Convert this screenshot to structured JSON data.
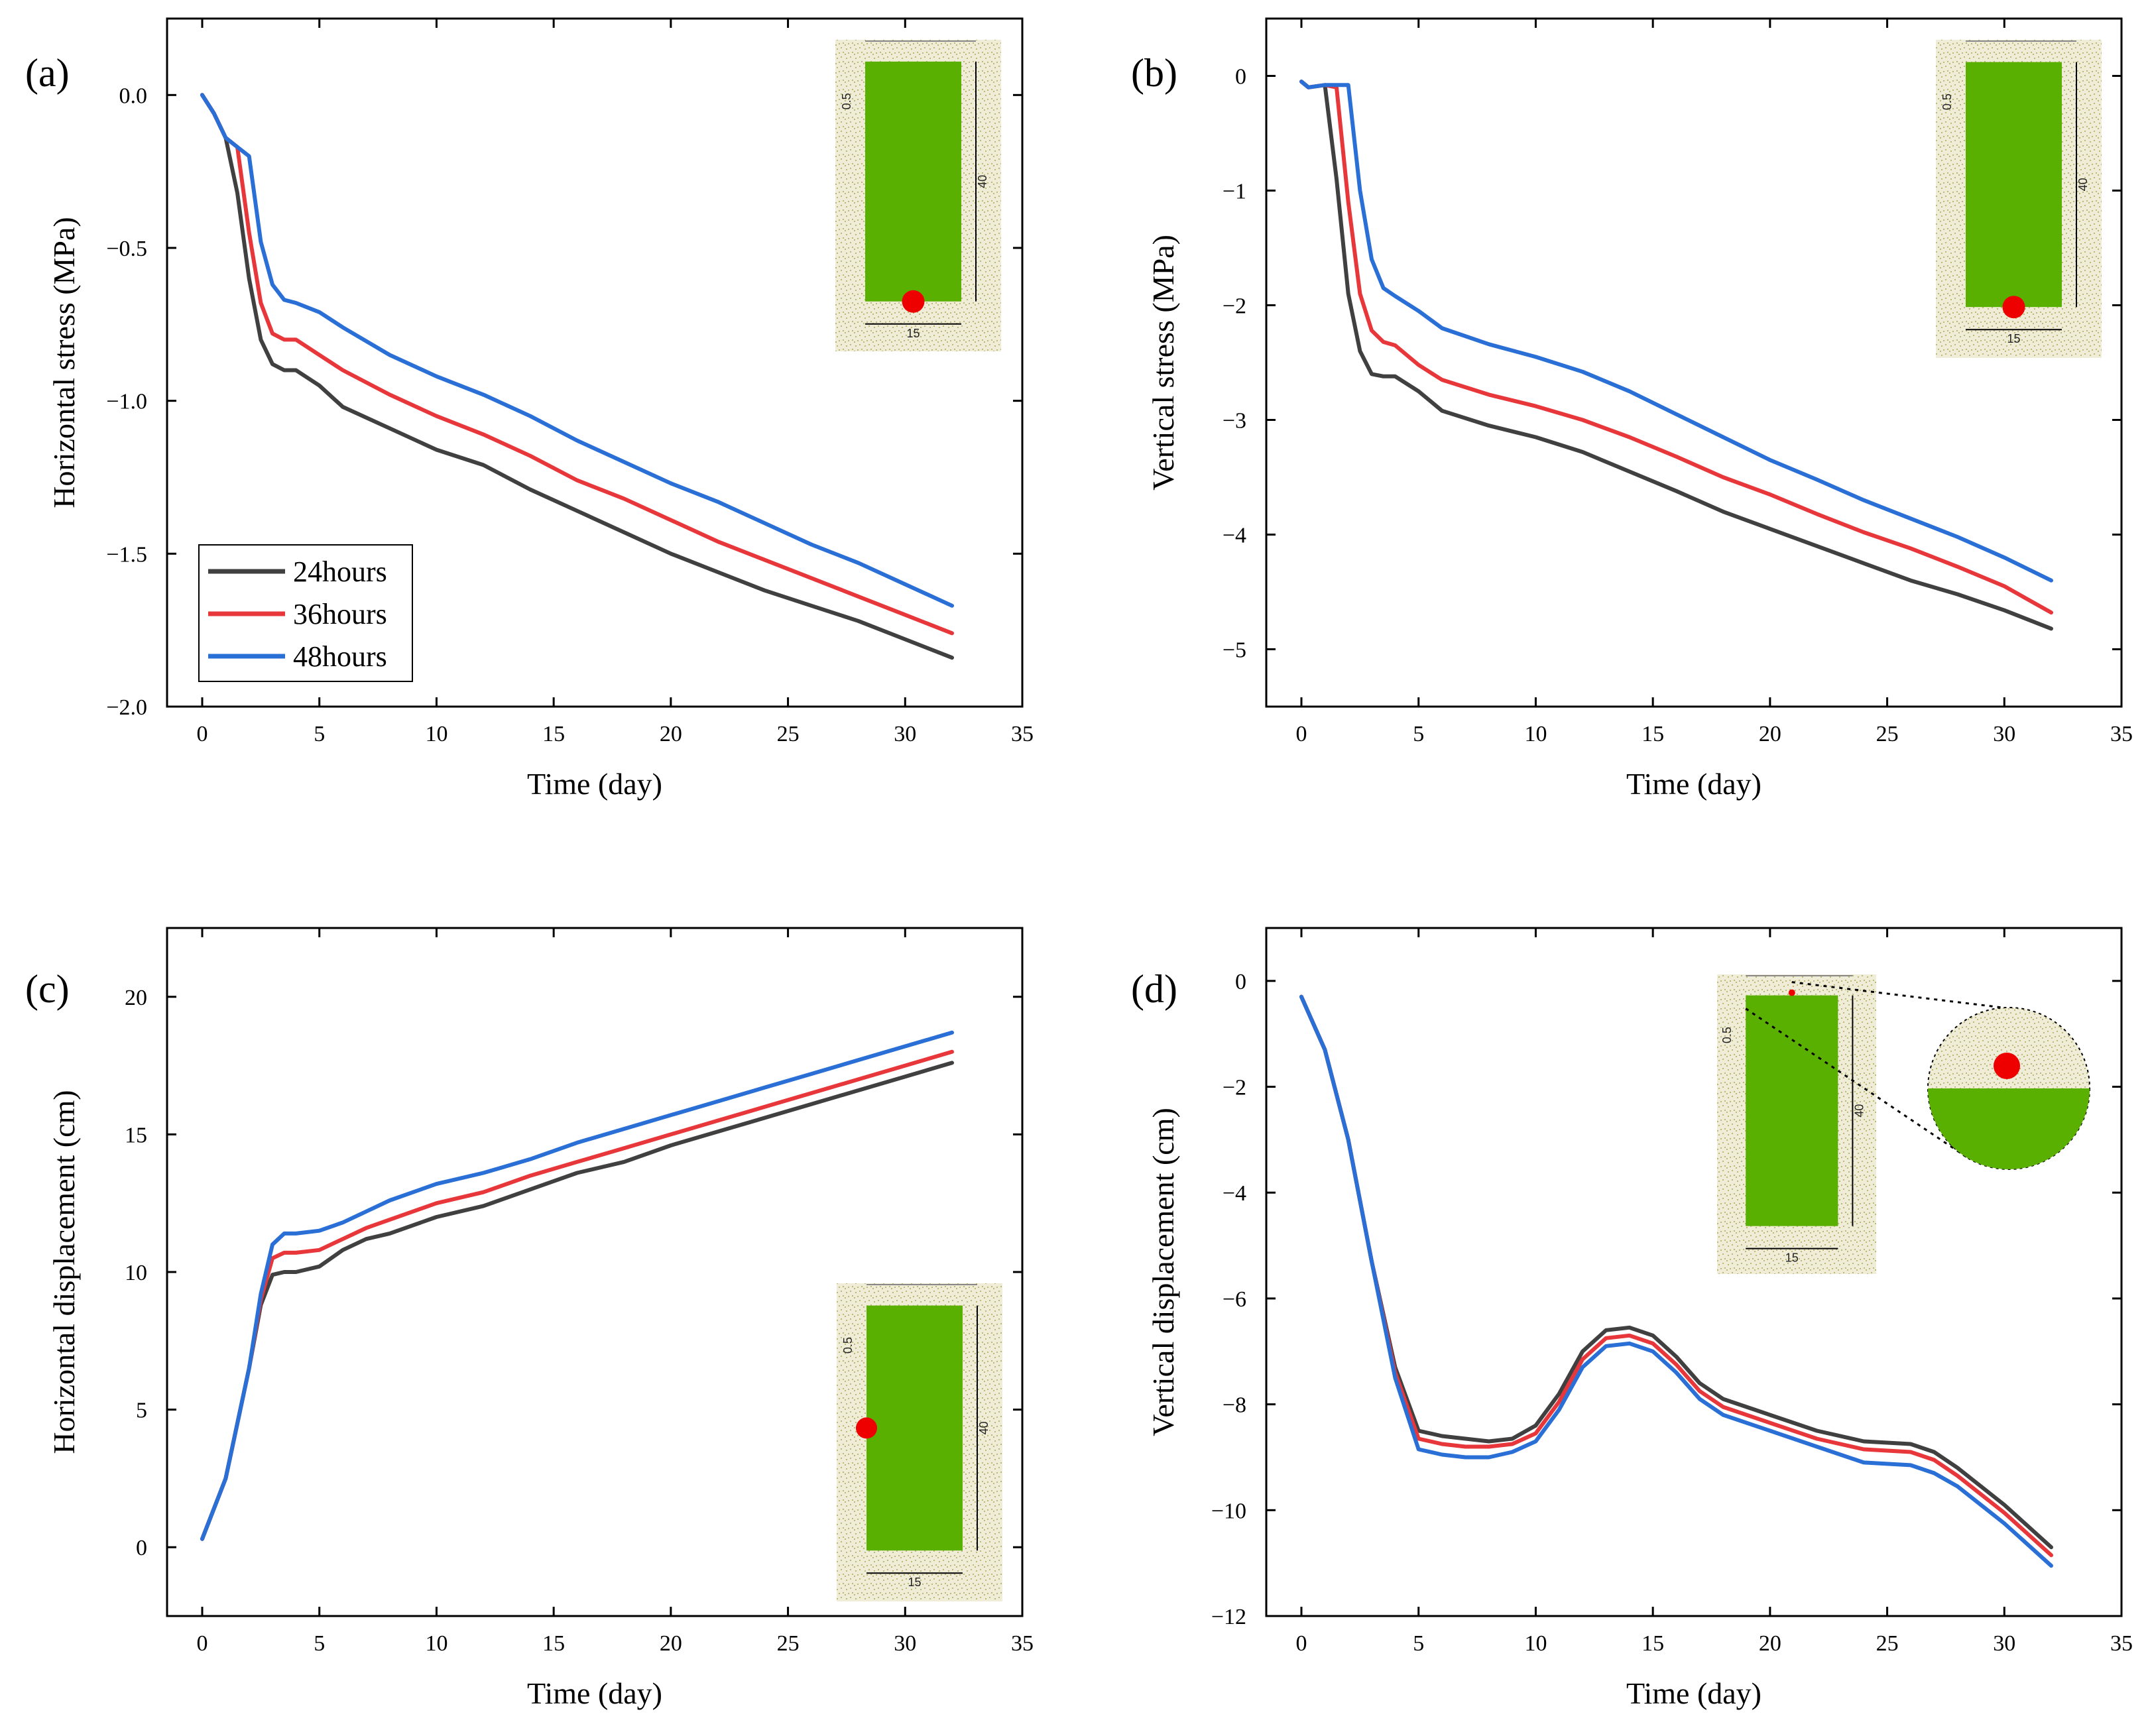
{
  "colors": {
    "24hours": "#404040",
    "36hours": "#e8373a",
    "48hours": "#2a6fd6",
    "inset_fill": "#5ab000",
    "inset_dot": "#ee0000",
    "soil": "#efedd8"
  },
  "legend": {
    "entries": [
      "24hours",
      "36hours",
      "48hours"
    ]
  },
  "inset": {
    "dim_top": "0.5",
    "dim_height": "40",
    "dim_width": "15"
  },
  "chart_data": [
    {
      "id": "a",
      "type": "line",
      "panel_label": "(a)",
      "xlabel": "Time (day)",
      "ylabel": "Horizontal stress (MPa)",
      "xlim": [
        -1.5,
        35
      ],
      "ylim": [
        -2.0,
        0.25
      ],
      "xticks": [
        0,
        5,
        10,
        15,
        20,
        25,
        30,
        35
      ],
      "yticks": [
        -2.0,
        -1.5,
        -1.0,
        -0.5,
        0.0
      ],
      "ytick_labels": [
        "−2.0",
        "−1.5",
        "−1.0",
        "−0.5",
        "0.0"
      ],
      "has_legend": true,
      "inset_marker": "bottom",
      "series": [
        {
          "name": "24hours",
          "x": [
            0,
            0.5,
            1,
            1.5,
            2,
            2.5,
            3,
            3.5,
            4,
            5,
            6,
            8,
            10,
            12,
            14,
            16,
            18,
            20,
            22,
            24,
            26,
            28,
            30,
            32
          ],
          "y": [
            0,
            -0.06,
            -0.14,
            -0.32,
            -0.6,
            -0.8,
            -0.88,
            -0.9,
            -0.9,
            -0.95,
            -1.02,
            -1.09,
            -1.16,
            -1.21,
            -1.29,
            -1.36,
            -1.43,
            -1.5,
            -1.56,
            -1.62,
            -1.67,
            -1.72,
            -1.78,
            -1.84
          ]
        },
        {
          "name": "36hours",
          "x": [
            0,
            0.5,
            1,
            1.5,
            2,
            2.5,
            3,
            3.5,
            4,
            5,
            6,
            8,
            10,
            12,
            14,
            16,
            18,
            20,
            22,
            24,
            26,
            28,
            30,
            32
          ],
          "y": [
            0,
            -0.06,
            -0.14,
            -0.17,
            -0.45,
            -0.68,
            -0.78,
            -0.8,
            -0.8,
            -0.85,
            -0.9,
            -0.98,
            -1.05,
            -1.11,
            -1.18,
            -1.26,
            -1.32,
            -1.39,
            -1.46,
            -1.52,
            -1.58,
            -1.64,
            -1.7,
            -1.76
          ]
        },
        {
          "name": "48hours",
          "x": [
            0,
            0.5,
            1,
            1.5,
            2,
            2.5,
            3,
            3.5,
            4,
            5,
            6,
            8,
            10,
            12,
            14,
            16,
            18,
            20,
            22,
            24,
            26,
            28,
            30,
            32
          ],
          "y": [
            0,
            -0.06,
            -0.14,
            -0.17,
            -0.2,
            -0.48,
            -0.62,
            -0.67,
            -0.68,
            -0.71,
            -0.76,
            -0.85,
            -0.92,
            -0.98,
            -1.05,
            -1.13,
            -1.2,
            -1.27,
            -1.33,
            -1.4,
            -1.47,
            -1.53,
            -1.6,
            -1.67
          ]
        }
      ]
    },
    {
      "id": "b",
      "type": "line",
      "panel_label": "(b)",
      "xlabel": "Time (day)",
      "ylabel": "Vertical stress (MPa)",
      "xlim": [
        -1.5,
        35
      ],
      "ylim": [
        -5.5,
        0.5
      ],
      "xticks": [
        0,
        5,
        10,
        15,
        20,
        25,
        30,
        35
      ],
      "yticks": [
        -5,
        -4,
        -3,
        -2,
        -1,
        0
      ],
      "ytick_labels": [
        "−5",
        "−4",
        "−3",
        "−2",
        "−1",
        "0"
      ],
      "has_legend": false,
      "inset_marker": "bottom",
      "series": [
        {
          "name": "24hours",
          "x": [
            0,
            0.3,
            1,
            1.5,
            2,
            2.5,
            3,
            3.5,
            4,
            5,
            6,
            8,
            10,
            12,
            14,
            16,
            18,
            20,
            22,
            24,
            26,
            28,
            30,
            32
          ],
          "y": [
            -0.05,
            -0.1,
            -0.08,
            -0.9,
            -1.9,
            -2.4,
            -2.6,
            -2.62,
            -2.62,
            -2.75,
            -2.92,
            -3.05,
            -3.15,
            -3.28,
            -3.45,
            -3.62,
            -3.8,
            -3.95,
            -4.1,
            -4.25,
            -4.4,
            -4.52,
            -4.66,
            -4.82
          ]
        },
        {
          "name": "36hours",
          "x": [
            0,
            0.3,
            1,
            1.5,
            2,
            2.5,
            3,
            3.5,
            4,
            5,
            6,
            8,
            10,
            12,
            14,
            16,
            18,
            20,
            22,
            24,
            26,
            28,
            30,
            32
          ],
          "y": [
            -0.05,
            -0.1,
            -0.08,
            -0.1,
            -1.1,
            -1.9,
            -2.22,
            -2.32,
            -2.35,
            -2.52,
            -2.65,
            -2.78,
            -2.88,
            -3.0,
            -3.15,
            -3.32,
            -3.5,
            -3.65,
            -3.82,
            -3.98,
            -4.12,
            -4.28,
            -4.45,
            -4.68
          ]
        },
        {
          "name": "48hours",
          "x": [
            0,
            0.3,
            1,
            1.5,
            2,
            2.5,
            3,
            3.5,
            4,
            5,
            6,
            8,
            10,
            12,
            14,
            16,
            18,
            20,
            22,
            24,
            26,
            28,
            30,
            32
          ],
          "y": [
            -0.05,
            -0.1,
            -0.08,
            -0.08,
            -0.08,
            -1.0,
            -1.6,
            -1.85,
            -1.92,
            -2.05,
            -2.2,
            -2.34,
            -2.45,
            -2.58,
            -2.75,
            -2.95,
            -3.15,
            -3.35,
            -3.52,
            -3.7,
            -3.86,
            -4.02,
            -4.2,
            -4.4
          ]
        }
      ]
    },
    {
      "id": "c",
      "type": "line",
      "panel_label": "(c)",
      "xlabel": "Time (day)",
      "ylabel": "Horizontal displacement (cm)",
      "xlim": [
        -1.5,
        35
      ],
      "ylim": [
        -2.5,
        22.5
      ],
      "xticks": [
        0,
        5,
        10,
        15,
        20,
        25,
        30,
        35
      ],
      "yticks": [
        0,
        5,
        10,
        15,
        20
      ],
      "ytick_labels": [
        "0",
        "5",
        "10",
        "15",
        "20"
      ],
      "has_legend": false,
      "inset_marker": "left",
      "series": [
        {
          "name": "24hours",
          "x": [
            0,
            1,
            2,
            2.5,
            3,
            3.5,
            4,
            5,
            6,
            7,
            8,
            10,
            12,
            14,
            16,
            18,
            20,
            22,
            24,
            26,
            28,
            30,
            32
          ],
          "y": [
            0.3,
            2.5,
            6.5,
            8.8,
            9.9,
            10.0,
            10.0,
            10.2,
            10.8,
            11.2,
            11.4,
            12.0,
            12.4,
            13.0,
            13.6,
            14.0,
            14.6,
            15.1,
            15.6,
            16.1,
            16.6,
            17.1,
            17.6
          ]
        },
        {
          "name": "36hours",
          "x": [
            0,
            1,
            2,
            2.5,
            3,
            3.5,
            4,
            5,
            6,
            7,
            8,
            10,
            12,
            14,
            16,
            18,
            20,
            22,
            24,
            26,
            28,
            30,
            32
          ],
          "y": [
            0.3,
            2.5,
            6.5,
            9.0,
            10.5,
            10.7,
            10.7,
            10.8,
            11.2,
            11.6,
            11.9,
            12.5,
            12.9,
            13.5,
            14.0,
            14.5,
            15.0,
            15.5,
            16.0,
            16.5,
            17.0,
            17.5,
            18.0
          ]
        },
        {
          "name": "48hours",
          "x": [
            0,
            1,
            2,
            2.5,
            3,
            3.5,
            4,
            5,
            6,
            7,
            8,
            10,
            12,
            14,
            16,
            18,
            20,
            22,
            24,
            26,
            28,
            30,
            32
          ],
          "y": [
            0.3,
            2.5,
            6.5,
            9.2,
            11.0,
            11.4,
            11.4,
            11.5,
            11.8,
            12.2,
            12.6,
            13.2,
            13.6,
            14.1,
            14.7,
            15.2,
            15.7,
            16.2,
            16.7,
            17.2,
            17.7,
            18.2,
            18.7
          ]
        }
      ]
    },
    {
      "id": "d",
      "type": "line",
      "panel_label": "(d)",
      "xlabel": "Time (day)",
      "ylabel": "Vertical displacement (cm)",
      "xlim": [
        -1.5,
        35
      ],
      "ylim": [
        -12,
        1
      ],
      "xticks": [
        0,
        5,
        10,
        15,
        20,
        25,
        30,
        35
      ],
      "yticks": [
        -12,
        -10,
        -8,
        -6,
        -4,
        -2,
        0
      ],
      "ytick_labels": [
        "−12",
        "−10",
        "−8",
        "−6",
        "−4",
        "−2",
        "0"
      ],
      "has_legend": false,
      "inset_marker": "zoom",
      "series": [
        {
          "name": "24hours",
          "x": [
            0,
            1,
            2,
            3,
            4,
            5,
            6,
            7,
            8,
            9,
            10,
            11,
            12,
            13,
            14,
            15,
            16,
            17,
            18,
            20,
            22,
            24,
            26,
            27,
            28,
            30,
            32
          ],
          "y": [
            -0.3,
            -1.3,
            -3.0,
            -5.3,
            -7.3,
            -8.5,
            -8.6,
            -8.65,
            -8.7,
            -8.65,
            -8.4,
            -7.8,
            -7.0,
            -6.6,
            -6.55,
            -6.7,
            -7.1,
            -7.6,
            -7.9,
            -8.2,
            -8.5,
            -8.7,
            -8.75,
            -8.9,
            -9.2,
            -9.9,
            -10.7
          ]
        },
        {
          "name": "36hours",
          "x": [
            0,
            1,
            2,
            3,
            4,
            5,
            6,
            7,
            8,
            9,
            10,
            11,
            12,
            13,
            14,
            15,
            16,
            17,
            18,
            20,
            22,
            24,
            26,
            27,
            28,
            30,
            32
          ],
          "y": [
            -0.3,
            -1.3,
            -3.0,
            -5.3,
            -7.4,
            -8.65,
            -8.75,
            -8.8,
            -8.8,
            -8.75,
            -8.55,
            -7.95,
            -7.15,
            -6.75,
            -6.7,
            -6.85,
            -7.25,
            -7.75,
            -8.05,
            -8.35,
            -8.65,
            -8.85,
            -8.9,
            -9.05,
            -9.35,
            -10.05,
            -10.85
          ]
        },
        {
          "name": "48hours",
          "x": [
            0,
            1,
            2,
            3,
            4,
            5,
            6,
            7,
            8,
            9,
            10,
            11,
            12,
            13,
            14,
            15,
            16,
            17,
            18,
            20,
            22,
            24,
            26,
            27,
            28,
            30,
            32
          ],
          "y": [
            -0.3,
            -1.3,
            -3.0,
            -5.3,
            -7.5,
            -8.85,
            -8.95,
            -9.0,
            -9.0,
            -8.9,
            -8.7,
            -8.1,
            -7.3,
            -6.9,
            -6.85,
            -7.0,
            -7.4,
            -7.9,
            -8.2,
            -8.5,
            -8.8,
            -9.1,
            -9.15,
            -9.3,
            -9.55,
            -10.25,
            -11.05
          ]
        }
      ]
    }
  ]
}
